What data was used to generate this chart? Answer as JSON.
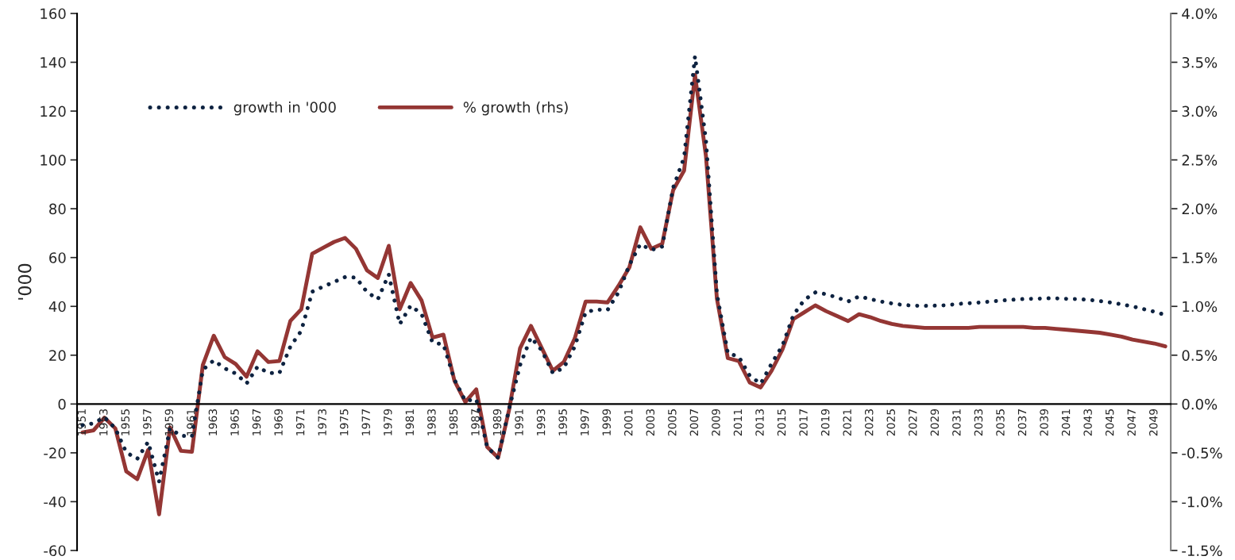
{
  "chart_data": {
    "type": "line",
    "ylabel": "'000",
    "categories": [
      "1951",
      null,
      "1953",
      null,
      "1955",
      null,
      "1957",
      null,
      "1959",
      null,
      "1961",
      null,
      "1963",
      null,
      "1965",
      null,
      "1967",
      null,
      "1969",
      null,
      "1971",
      null,
      "1973",
      null,
      "1975",
      null,
      "1977",
      null,
      "1979",
      null,
      "1981",
      null,
      "1983",
      null,
      "1985",
      null,
      "1987",
      null,
      "1989",
      null,
      "1991",
      null,
      "1993",
      null,
      "1995",
      null,
      "1997",
      null,
      "1999",
      null,
      "2001",
      null,
      "2003",
      null,
      "2005",
      null,
      "2007",
      null,
      "2009",
      null,
      "2011",
      null,
      "2013",
      null,
      "2015",
      null,
      "2017",
      null,
      "2019",
      null,
      "2021",
      null,
      "2023",
      null,
      "2025",
      null,
      "2027",
      null,
      "2029",
      null,
      "2031",
      null,
      "2033",
      null,
      "2035",
      null,
      "2037",
      null,
      "2039",
      null,
      "2041",
      null,
      "2043",
      null,
      "2045",
      null,
      "2047",
      null,
      "2049",
      null
    ],
    "series": [
      {
        "name": "growth in '000",
        "color": "#0d2240",
        "line_style": "dotted",
        "values": [
          -8.7,
          -7.9,
          -5.4,
          -10,
          -19.8,
          -22.5,
          -15.5,
          -31.8,
          -10,
          -13,
          -13.3,
          14,
          17.9,
          14.6,
          12.5,
          8.4,
          15.3,
          12.7,
          12.7,
          23.5,
          30,
          46,
          48.1,
          50,
          52,
          51.8,
          45.9,
          42.9,
          53.1,
          32.7,
          40.3,
          36.9,
          25.2,
          24.4,
          10,
          1.3,
          2,
          -17.7,
          -22,
          -2,
          15.9,
          27.3,
          21.9,
          12.7,
          14.8,
          23.5,
          37.6,
          38.7,
          38.5,
          45.7,
          57,
          65.5,
          63.1,
          64.5,
          88.6,
          101,
          142.5,
          108,
          45.2,
          20.8,
          19.4,
          11.6,
          8.3,
          16.5,
          24,
          36.5,
          42.7,
          45.7,
          45,
          43.6,
          42,
          44.1,
          43,
          42,
          41.2,
          40.6,
          40.3,
          40.2,
          40.3,
          40.5,
          41,
          41.3,
          41.6,
          42,
          42.4,
          42.7,
          43,
          43.1,
          43.3,
          43.3,
          43.1,
          43,
          42.7,
          42.2,
          41.6,
          40.8,
          40,
          38.9,
          37.8,
          36.5
        ]
      },
      {
        "name": "% growth (rhs)",
        "color": "#943634",
        "line_style": "solid",
        "axis": "y2",
        "values": [
          -0.29,
          -0.27,
          -0.14,
          -0.25,
          -0.69,
          -0.77,
          -0.47,
          -1.13,
          -0.24,
          -0.48,
          -0.49,
          0.4,
          0.7,
          0.48,
          0.41,
          0.28,
          0.54,
          0.43,
          0.44,
          0.85,
          0.97,
          1.54,
          1.6,
          1.66,
          1.7,
          1.59,
          1.37,
          1.29,
          1.62,
          0.97,
          1.24,
          1.06,
          0.68,
          0.71,
          0.24,
          0.02,
          0.15,
          -0.44,
          -0.55,
          -0.06,
          0.57,
          0.8,
          0.57,
          0.34,
          0.43,
          0.67,
          1.05,
          1.05,
          1.04,
          1.21,
          1.4,
          1.81,
          1.59,
          1.64,
          2.19,
          2.39,
          3.37,
          2.54,
          1.08,
          0.47,
          0.44,
          0.22,
          0.17,
          0.34,
          0.56,
          0.87,
          0.94,
          1.01,
          0.95,
          0.9,
          0.85,
          0.92,
          0.89,
          0.85,
          0.82,
          0.8,
          0.79,
          0.78,
          0.78,
          0.78,
          0.78,
          0.78,
          0.79,
          0.79,
          0.79,
          0.79,
          0.79,
          0.78,
          0.78,
          0.77,
          0.76,
          0.75,
          0.74,
          0.73,
          0.71,
          0.69,
          0.66,
          0.64,
          0.62,
          0.59
        ]
      }
    ],
    "ylim": [
      -60,
      160
    ],
    "yticks": [
      -60,
      -40,
      -20,
      0,
      20,
      40,
      60,
      80,
      100,
      120,
      140,
      160
    ],
    "y2lim": [
      -1.5,
      4.0
    ],
    "y2ticks": [
      {
        "value": -1.5,
        "label": "-1.5%"
      },
      {
        "value": -1.0,
        "label": "-1.0%"
      },
      {
        "value": -0.5,
        "label": "-0.5%"
      },
      {
        "value": 0,
        "label": "0.0%"
      },
      {
        "value": 0.5,
        "label": "0.5%"
      },
      {
        "value": 1.0,
        "label": "1.0%"
      },
      {
        "value": 1.5,
        "label": "1.5%"
      },
      {
        "value": 2.0,
        "label": "2.0%"
      },
      {
        "value": 2.5,
        "label": "2.5%"
      },
      {
        "value": 3.0,
        "label": "3.0%"
      },
      {
        "value": 3.5,
        "label": "3.5%"
      },
      {
        "value": 4.0,
        "label": "4.0%"
      }
    ],
    "legend": "top left",
    "grid": false,
    "marker": "none"
  }
}
